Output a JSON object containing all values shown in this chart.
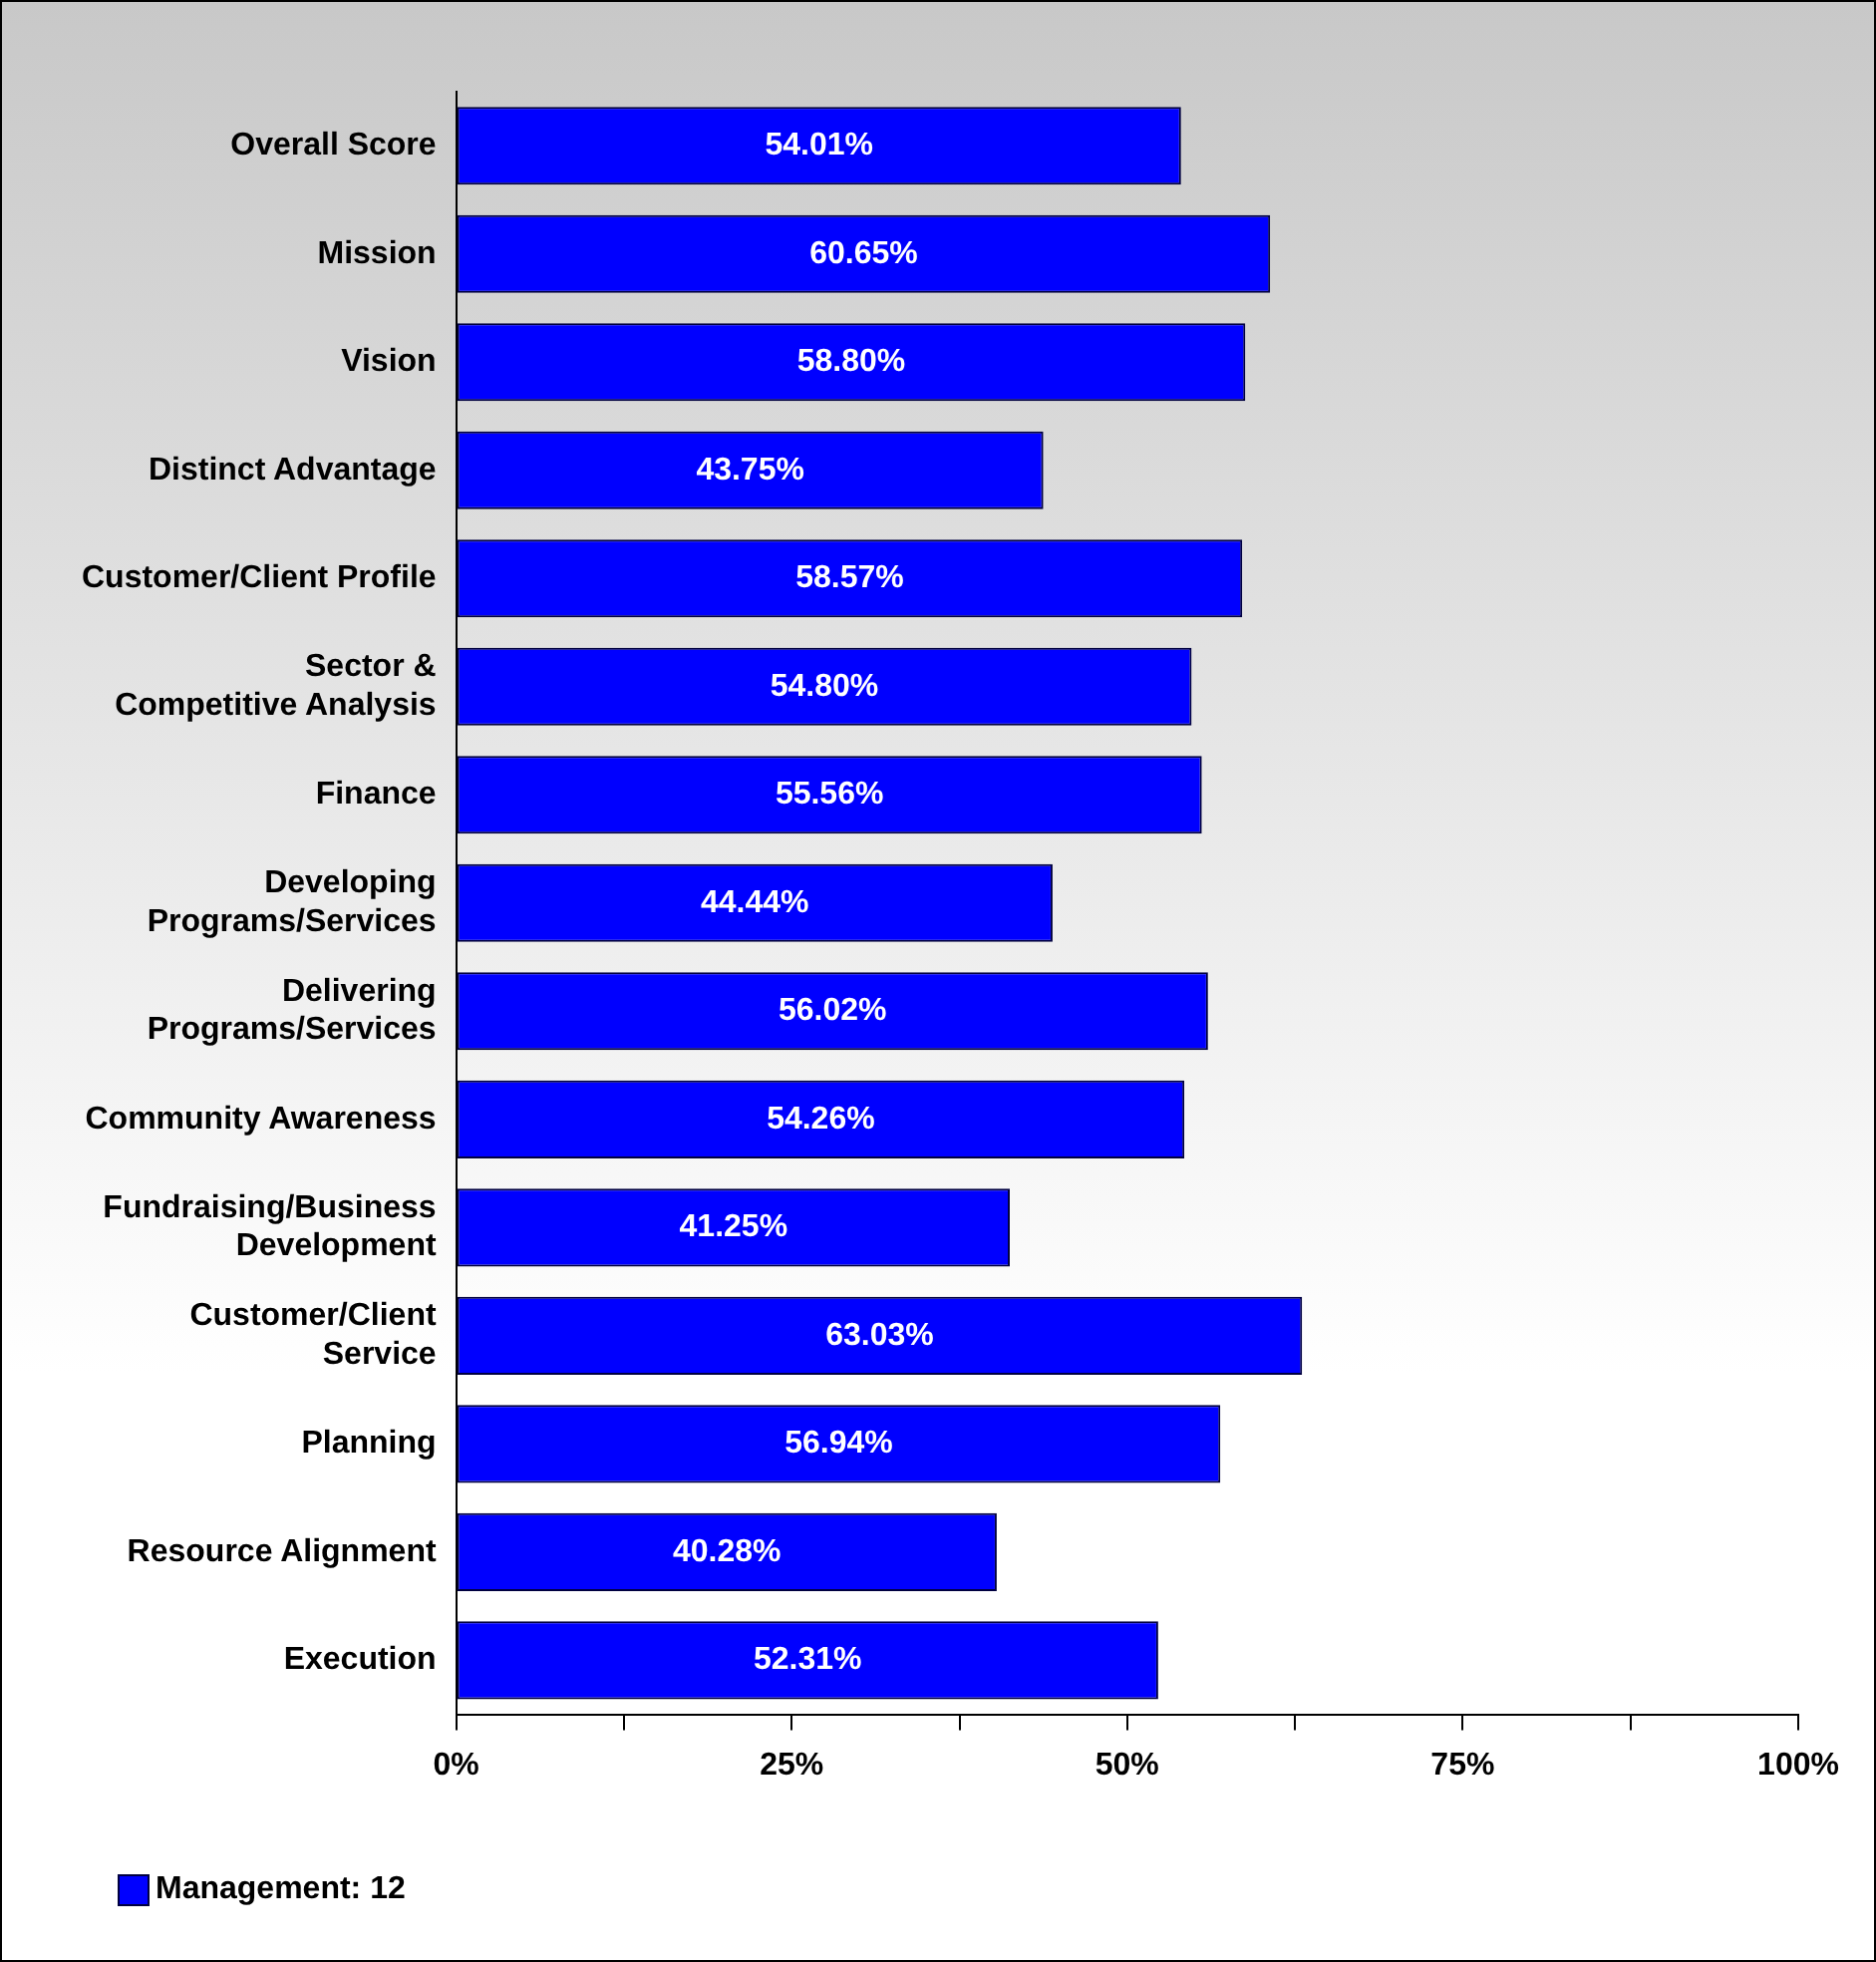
{
  "chart_data": {
    "type": "bar",
    "orientation": "horizontal",
    "categories": [
      "Overall Score",
      "Mission",
      "Vision",
      "Distinct Advantage",
      "Customer/Client Profile",
      "Sector &\nCompetitive Analysis",
      "Finance",
      "Developing\nPrograms/Services",
      "Delivering\nPrograms/Services",
      "Community Awareness",
      "Fundraising/Business\nDevelopment",
      "Customer/Client\nService",
      "Planning",
      "Resource Alignment",
      "Execution"
    ],
    "series": [
      {
        "name": "Management: 12",
        "color": "#0000ff",
        "values": [
          54.01,
          60.65,
          58.8,
          43.75,
          58.57,
          54.8,
          55.56,
          44.44,
          56.02,
          54.26,
          41.25,
          63.03,
          56.94,
          40.28,
          52.31
        ],
        "value_labels": [
          "54.01%",
          "60.65%",
          "58.80%",
          "43.75%",
          "58.57%",
          "54.80%",
          "55.56%",
          "44.44%",
          "56.02%",
          "54.26%",
          "41.25%",
          "63.03%",
          "56.94%",
          "40.28%",
          "52.31%"
        ]
      }
    ],
    "xlim": [
      0,
      100
    ],
    "xticks": [
      {
        "value": 0,
        "label": "0%"
      },
      {
        "value": 12.5,
        "label": null
      },
      {
        "value": 25,
        "label": "25%"
      },
      {
        "value": 37.5,
        "label": null
      },
      {
        "value": 50,
        "label": "50%"
      },
      {
        "value": 62.5,
        "label": null
      },
      {
        "value": 75,
        "label": "75%"
      },
      {
        "value": 87.5,
        "label": null
      },
      {
        "value": 100,
        "label": "100%"
      }
    ],
    "grid": false,
    "legend": "bottom left"
  }
}
